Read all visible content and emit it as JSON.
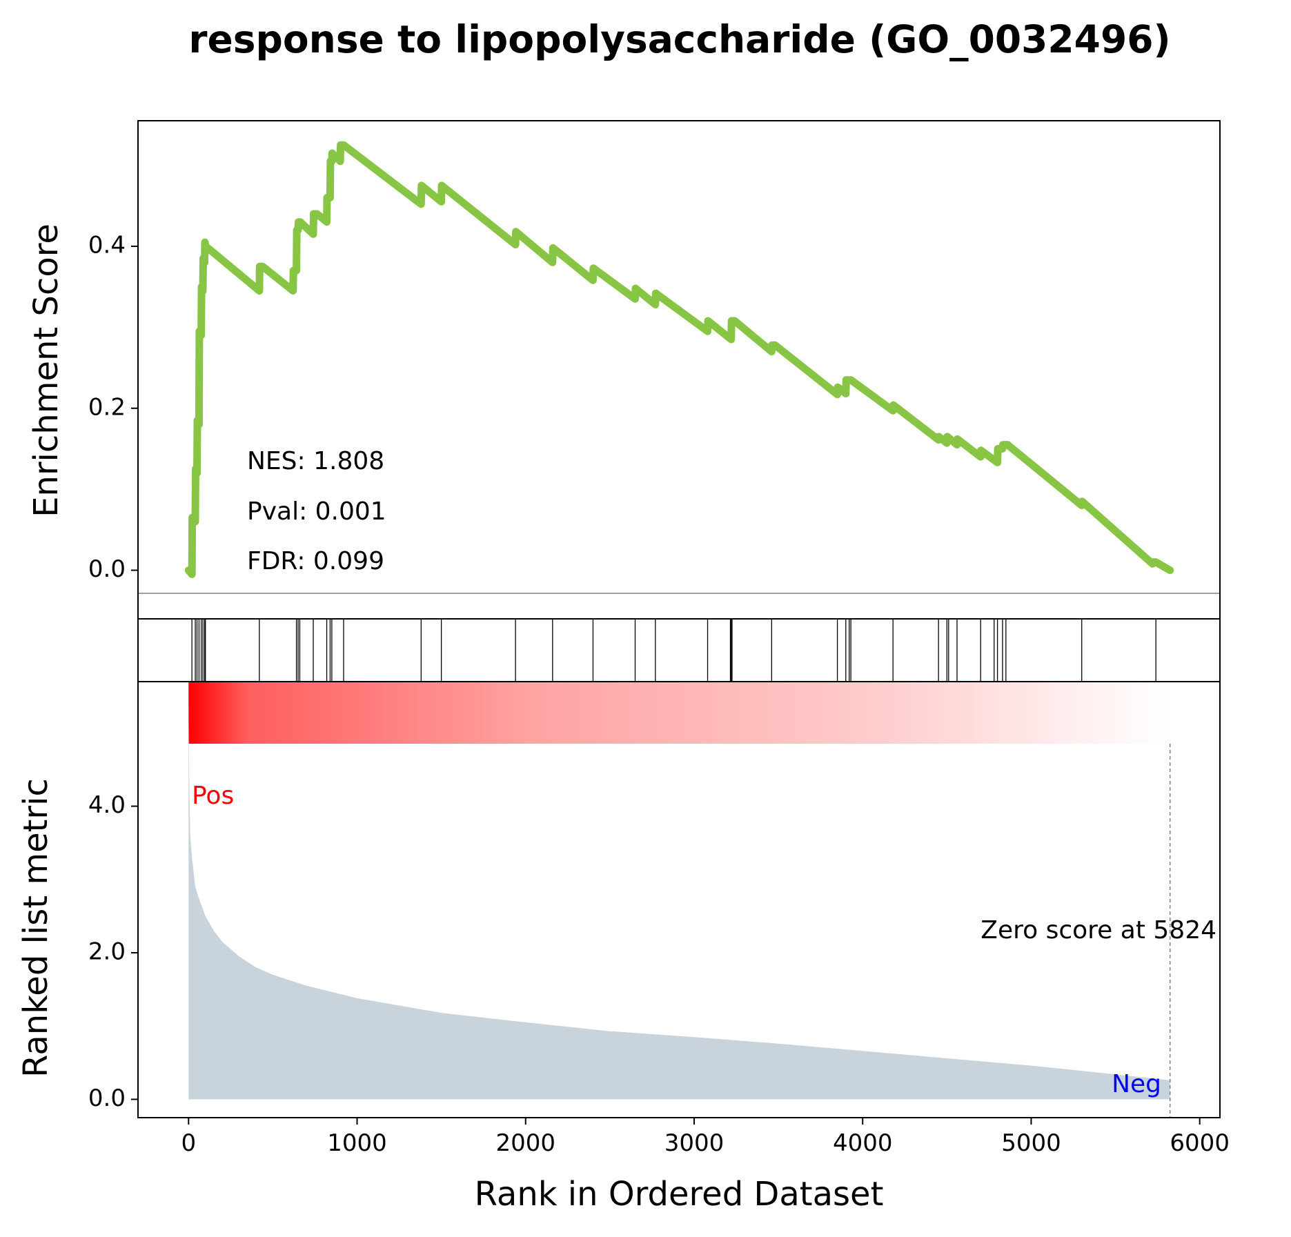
{
  "chart_data": {
    "type": "line",
    "title": "response to lipopolysaccharide (GO_0032496)",
    "xlabel": "Rank in Ordered Dataset",
    "xlim": [
      -300,
      6120
    ],
    "xticks": [
      0,
      1000,
      2000,
      3000,
      4000,
      5000,
      6000
    ],
    "es_panel": {
      "ylabel": "Enrichment Score",
      "ylim": [
        -0.06,
        0.555
      ],
      "yticks": [
        0.0,
        0.2,
        0.4
      ],
      "ytick_labels": [
        "0.0",
        "0.2",
        "0.4"
      ],
      "baseline": 0.0,
      "line_color": "#88C544",
      "series": {
        "name": "",
        "x": [
          0,
          20,
          22,
          40,
          42,
          50,
          52,
          62,
          64,
          75,
          77,
          85,
          87,
          95,
          97,
          100,
          102,
          420,
          422,
          440,
          620,
          622,
          640,
          642,
          650,
          652,
          660,
          662,
          740,
          742,
          760,
          762,
          820,
          822,
          840,
          842,
          850,
          852,
          900,
          902,
          920,
          1380,
          1382,
          1500,
          1502,
          1940,
          1942,
          2160,
          2162,
          2400,
          2402,
          2650,
          2652,
          2770,
          2772,
          3080,
          3082,
          3220,
          3222,
          3240,
          3460,
          3462,
          3480,
          3850,
          3852,
          3900,
          3902,
          3930,
          4180,
          4182,
          4450,
          4452,
          4500,
          4502,
          4560,
          4562,
          4700,
          4702,
          4800,
          4802,
          4830,
          4832,
          4860,
          5300,
          5302,
          5720,
          5722,
          5740,
          5824
        ],
        "y": [
          0.0,
          -0.005,
          0.065,
          0.06,
          0.125,
          0.12,
          0.185,
          0.18,
          0.295,
          0.29,
          0.35,
          0.345,
          0.385,
          0.38,
          0.405,
          0.4,
          0.4,
          0.345,
          0.375,
          0.375,
          0.345,
          0.37,
          0.37,
          0.42,
          0.42,
          0.43,
          0.43,
          0.43,
          0.415,
          0.44,
          0.44,
          0.44,
          0.43,
          0.46,
          0.46,
          0.505,
          0.505,
          0.515,
          0.505,
          0.525,
          0.525,
          0.452,
          0.475,
          0.455,
          0.475,
          0.402,
          0.418,
          0.38,
          0.398,
          0.358,
          0.373,
          0.335,
          0.348,
          0.328,
          0.342,
          0.295,
          0.308,
          0.285,
          0.308,
          0.308,
          0.27,
          0.278,
          0.278,
          0.217,
          0.226,
          0.218,
          0.235,
          0.235,
          0.197,
          0.204,
          0.161,
          0.165,
          0.157,
          0.165,
          0.155,
          0.162,
          0.14,
          0.148,
          0.133,
          0.15,
          0.15,
          0.155,
          0.155,
          0.08,
          0.085,
          0.008,
          0.01,
          0.01,
          0.0
        ]
      },
      "annotations": [
        "NES: 1.808",
        "Pval: 0.001",
        "FDR: 0.099"
      ]
    },
    "hits_panel": {
      "hits": [
        20,
        40,
        50,
        62,
        75,
        85,
        95,
        100,
        420,
        640,
        650,
        660,
        740,
        820,
        840,
        850,
        920,
        1380,
        1500,
        1940,
        2160,
        2400,
        2650,
        2770,
        3080,
        3215,
        3220,
        3225,
        3460,
        3850,
        3900,
        3920,
        3930,
        4180,
        4450,
        4500,
        4510,
        4560,
        4700,
        4780,
        4800,
        4830,
        4850,
        5300,
        5740
      ],
      "color": "#000000"
    },
    "heatmap_strip": {
      "range": [
        0,
        5824
      ],
      "colors": [
        "#FF0000",
        "#FFFFFF"
      ]
    },
    "metric_panel": {
      "ylabel": "Ranked list metric",
      "ylim": [
        -0.25,
        5.7
      ],
      "yticks": [
        0.0,
        2.0,
        4.0
      ],
      "ytick_labels": [
        "0.0",
        "2.0",
        "4.0"
      ],
      "fill_color": "#C9D3DC",
      "series": {
        "name": "",
        "x": [
          0,
          5,
          10,
          20,
          40,
          60,
          100,
          150,
          200,
          300,
          400,
          500,
          700,
          1000,
          1500,
          2000,
          2500,
          3000,
          3500,
          4000,
          4500,
          5000,
          5500,
          5824
        ],
        "y": [
          5.35,
          4.2,
          3.6,
          3.3,
          2.9,
          2.75,
          2.5,
          2.3,
          2.15,
          1.95,
          1.8,
          1.7,
          1.55,
          1.38,
          1.18,
          1.05,
          0.93,
          0.85,
          0.76,
          0.66,
          0.56,
          0.46,
          0.34,
          0.26
        ]
      },
      "pos_label": "Pos",
      "pos_color": "#FF0000",
      "neg_label": "Neg",
      "neg_color": "#0000FF",
      "zero_score_rank": 5824,
      "zero_score_label": "Zero score at 5824"
    }
  }
}
